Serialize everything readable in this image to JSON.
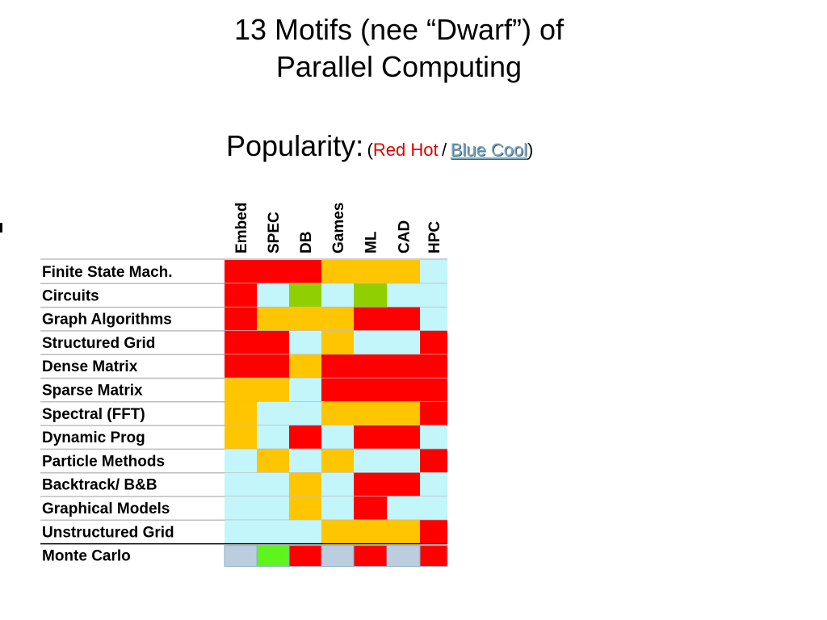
{
  "title": [
    "13 Motifs (nee “Dwarf”) of",
    "Parallel Computing"
  ],
  "subtitle": {
    "label": "Popularity:",
    "open_paren": "(",
    "hot": "Red Hot",
    "separator": "/",
    "cool": "Blue Cool",
    "close_paren": ")"
  },
  "colors": {
    "H": "#ff0000",
    "W": "#ffc600",
    "N": "#91d000",
    "C": "#c2f6fb",
    "G": "#5ef51e",
    "S": "#bccde0"
  },
  "chart_data": {
    "type": "heatmap",
    "title": "13 Motifs (nee “Dwarf”) of Parallel Computing",
    "legend": {
      "H": "Red Hot",
      "C": "Blue Cool"
    },
    "columns": [
      "Embed",
      "SPEC",
      "DB",
      "Games",
      "ML",
      "CAD",
      "HPC"
    ],
    "rows": [
      {
        "label": "Finite State Mach.",
        "cells": [
          "H",
          "H",
          "H",
          "W",
          "W",
          "W",
          "C"
        ]
      },
      {
        "label": "Circuits",
        "cells": [
          "H",
          "C",
          "N",
          "C",
          "N",
          "C",
          "C"
        ]
      },
      {
        "label": "Graph Algorithms",
        "cells": [
          "H",
          "W",
          "W",
          "W",
          "H",
          "H",
          "C"
        ]
      },
      {
        "label": "Structured Grid",
        "cells": [
          "H",
          "H",
          "C",
          "W",
          "C",
          "C",
          "H"
        ]
      },
      {
        "label": "Dense Matrix",
        "cells": [
          "H",
          "H",
          "W",
          "H",
          "H",
          "H",
          "H"
        ]
      },
      {
        "label": "Sparse Matrix",
        "cells": [
          "W",
          "W",
          "C",
          "H",
          "H",
          "H",
          "H"
        ]
      },
      {
        "label": "Spectral (FFT)",
        "cells": [
          "W",
          "C",
          "C",
          "W",
          "W",
          "W",
          "H"
        ]
      },
      {
        "label": "Dynamic Prog",
        "cells": [
          "W",
          "C",
          "H",
          "C",
          "H",
          "H",
          "C"
        ]
      },
      {
        "label": "Particle Methods",
        "cells": [
          "C",
          "W",
          "C",
          "W",
          "C",
          "C",
          "H"
        ]
      },
      {
        "label": "Backtrack/ B&B",
        "cells": [
          "C",
          "C",
          "W",
          "C",
          "H",
          "H",
          "C"
        ]
      },
      {
        "label": "Graphical Models",
        "cells": [
          "C",
          "C",
          "W",
          "C",
          "H",
          "C",
          "C"
        ]
      },
      {
        "label": "Unstructured Grid",
        "cells": [
          "C",
          "C",
          "C",
          "W",
          "W",
          "W",
          "H"
        ]
      },
      {
        "label": "Monte Carlo",
        "cells": [
          "S",
          "G",
          "H",
          "S",
          "H",
          "S",
          "H"
        ]
      }
    ]
  }
}
